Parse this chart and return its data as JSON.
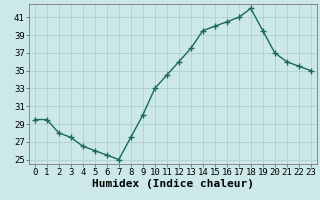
{
  "x": [
    0,
    1,
    2,
    3,
    4,
    5,
    6,
    7,
    8,
    9,
    10,
    11,
    12,
    13,
    14,
    15,
    16,
    17,
    18,
    19,
    20,
    21,
    22,
    23
  ],
  "y": [
    29.5,
    29.5,
    28,
    27.5,
    26.5,
    26,
    25.5,
    25,
    27.5,
    30,
    33,
    34.5,
    36,
    37.5,
    39.5,
    40,
    40.5,
    41,
    42,
    39.5,
    37,
    36,
    35.5,
    35
  ],
  "line_color": "#1a6b5a",
  "marker": "+",
  "bg_color": "#cce8e8",
  "grid_color": "#aacccc",
  "xlabel": "Humidex (Indice chaleur)",
  "ylim": [
    24.5,
    42.5
  ],
  "yticks": [
    25,
    27,
    29,
    31,
    33,
    35,
    37,
    39,
    41
  ],
  "xticks": [
    0,
    1,
    2,
    3,
    4,
    5,
    6,
    7,
    8,
    9,
    10,
    11,
    12,
    13,
    14,
    15,
    16,
    17,
    18,
    19,
    20,
    21,
    22,
    23
  ],
  "xlabel_fontsize": 8,
  "tick_fontsize": 6.5,
  "line_width": 1.0,
  "marker_size": 4
}
